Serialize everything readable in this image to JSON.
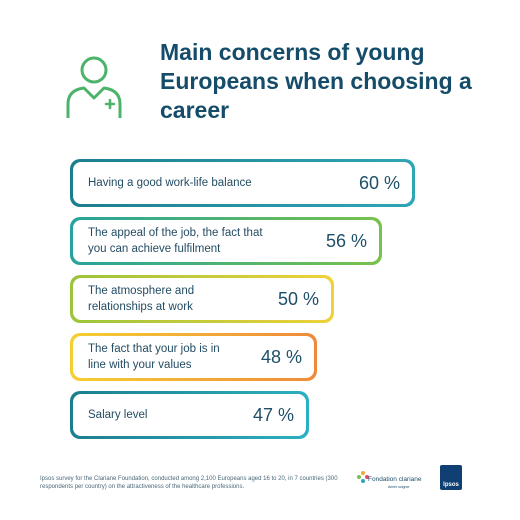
{
  "title": "Main concerns of young Europeans when choosing a career",
  "chart_data": {
    "type": "bar",
    "orientation": "horizontal",
    "title": "Main concerns of young Europeans when choosing a career",
    "categories": [
      "Having a good work-life balance",
      "The appeal of the job, the fact that you can achieve fulfilment",
      "The atmosphere and relationships at work",
      "The fact that your job is in line with your values",
      "Salary level"
    ],
    "values": [
      60,
      56,
      50,
      48,
      47
    ],
    "value_labels": [
      "60 %",
      "56 %",
      "50 %",
      "48 %",
      "47 %"
    ],
    "unit": "%",
    "colors": [
      [
        "#1d7e8f",
        "#2fa6b5"
      ],
      [
        "#27a39c",
        "#79c24a"
      ],
      [
        "#9bc43a",
        "#f0d13a"
      ],
      [
        "#f5cf32",
        "#f08a3a"
      ],
      [
        "#1d7e8f",
        "#2ab0c0"
      ]
    ]
  },
  "footnote": "Ipsos survey for the Clariane Foundation, conducted among 2,100 Europeans aged 16 to 20, in 7 countries (300 respondents per country) on the attractiveness of the healthcare professions.",
  "logos": {
    "clariane": "Fondation clariane",
    "clariane_tagline": "Aimer soigner",
    "ipsos": "Ipsos"
  },
  "icons": {
    "header": "healthcare-worker-icon",
    "accent_color": "#4bb36a"
  }
}
